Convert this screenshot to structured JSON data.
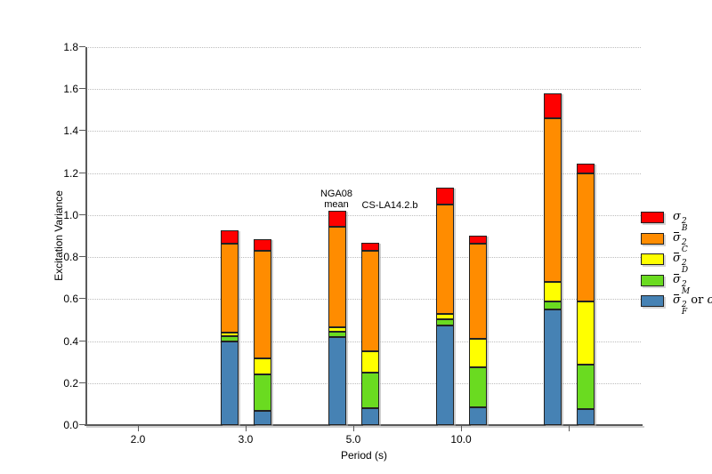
{
  "chart_data": {
    "type": "bar",
    "stacked": true,
    "title": "",
    "xlabel": "Period (s)",
    "ylabel": "Excitation Variance",
    "ylim": [
      0,
      1.8
    ],
    "ytick_step": 0.2,
    "y_tick_labels": [
      "0.0",
      "0.2",
      "0.4",
      "0.6",
      "0.8",
      "1.0",
      "1.2",
      "1.4",
      "1.6",
      "1.8"
    ],
    "x_tick_labels": [
      "2.0",
      "3.0",
      "5.0",
      "10.0",
      ""
    ],
    "grid": "horizontal-dotted",
    "legend_position": "right-outside",
    "series_order_bottom_to_top": [
      "sigma2_F",
      "sigma2_M",
      "sigma2_D",
      "sigma2_C",
      "sigma2_B"
    ],
    "series_colors": {
      "sigma2_B": "#fe0000",
      "sigma2_C": "#ff8c00",
      "sigma2_D": "#ffff00",
      "sigma2_M": "#6adb20",
      "sigma2_F": "#4682b4"
    },
    "groups": [
      {
        "x_label": "3.0",
        "bars": [
          {
            "name": "NGA08 mean",
            "total": 0.93,
            "segments": {
              "sigma2_F": 0.4,
              "sigma2_M": 0.025,
              "sigma2_D": 0.015,
              "sigma2_C": 0.425,
              "sigma2_B": 0.065
            }
          },
          {
            "name": "CS-LA14.2.b",
            "total": 0.885,
            "segments": {
              "sigma2_F": 0.07,
              "sigma2_M": 0.17,
              "sigma2_D": 0.08,
              "sigma2_C": 0.51,
              "sigma2_B": 0.055
            }
          }
        ]
      },
      {
        "x_label": "5.0",
        "bars": [
          {
            "name": "NGA08 mean",
            "total": 1.02,
            "segments": {
              "sigma2_F": 0.42,
              "sigma2_M": 0.025,
              "sigma2_D": 0.02,
              "sigma2_C": 0.48,
              "sigma2_B": 0.075
            }
          },
          {
            "name": "CS-LA14.2.b",
            "total": 0.87,
            "segments": {
              "sigma2_F": 0.08,
              "sigma2_M": 0.17,
              "sigma2_D": 0.1,
              "sigma2_C": 0.48,
              "sigma2_B": 0.04
            }
          }
        ]
      },
      {
        "x_label": "10.0",
        "bars": [
          {
            "name": "NGA08 mean",
            "total": 1.13,
            "segments": {
              "sigma2_F": 0.475,
              "sigma2_M": 0.03,
              "sigma2_D": 0.025,
              "sigma2_C": 0.52,
              "sigma2_B": 0.08
            }
          },
          {
            "name": "CS-LA14.2.b",
            "total": 0.9,
            "segments": {
              "sigma2_F": 0.085,
              "sigma2_M": 0.19,
              "sigma2_D": 0.135,
              "sigma2_C": 0.455,
              "sigma2_B": 0.035
            }
          }
        ]
      },
      {
        "x_label": "",
        "bars": [
          {
            "name": "NGA08 mean",
            "total": 1.58,
            "segments": {
              "sigma2_F": 0.55,
              "sigma2_M": 0.04,
              "sigma2_D": 0.09,
              "sigma2_C": 0.78,
              "sigma2_B": 0.12
            }
          },
          {
            "name": "CS-LA14.2.b",
            "total": 1.245,
            "segments": {
              "sigma2_F": 0.075,
              "sigma2_M": 0.215,
              "sigma2_D": 0.3,
              "sigma2_C": 0.61,
              "sigma2_B": 0.045
            }
          }
        ]
      }
    ],
    "annotations": [
      {
        "lines": [
          "NGA08",
          "mean"
        ]
      },
      {
        "lines": [
          "CS-LA14.2.b"
        ]
      }
    ],
    "legend": [
      {
        "base": "σ",
        "overbar": false,
        "sup": "2",
        "sub": "B",
        "suffix_text": "",
        "suffix_symbol": "",
        "color": "#fe0000"
      },
      {
        "base": "σ",
        "overbar": true,
        "sup": "2",
        "sub": "C",
        "suffix_text": "",
        "suffix_symbol": "",
        "color": "#ff8c00"
      },
      {
        "base": "σ",
        "overbar": true,
        "sup": "2",
        "sub": "D",
        "suffix_text": "",
        "suffix_symbol": "",
        "color": "#ffff00"
      },
      {
        "base": "σ",
        "overbar": true,
        "sup": "2",
        "sub": "M",
        "suffix_text": "",
        "suffix_symbol": "",
        "color": "#6adb20"
      },
      {
        "base": "σ",
        "overbar": true,
        "sup": "2",
        "sub": "F",
        "suffix_text": " or ",
        "suffix_symbol": "σ",
        "color": "#4682b4"
      }
    ]
  }
}
